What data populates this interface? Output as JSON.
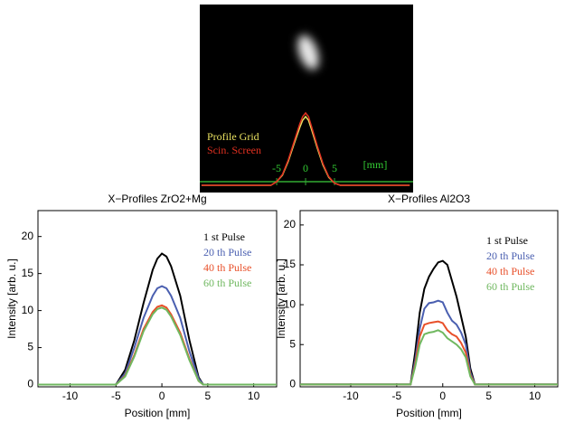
{
  "chart_data": [
    {
      "type": "line",
      "x_label": "[mm]",
      "xlim": [
        -18.3,
        18.6
      ],
      "ylim": [
        -0.1,
        2.5
      ],
      "xticks": [
        -5,
        0,
        5
      ],
      "x": [
        -18,
        -6,
        -5,
        -4,
        -3,
        -2,
        -1,
        -0.5,
        0,
        0.5,
        1,
        2,
        3,
        4,
        5,
        6,
        18
      ],
      "series": [
        {
          "name": "Profile Grid",
          "color": "#e8e060",
          "values": [
            0,
            0,
            0.05,
            0.14,
            0.33,
            0.57,
            0.8,
            0.9,
            0.95,
            0.9,
            0.78,
            0.52,
            0.28,
            0.11,
            0.03,
            0,
            0
          ]
        },
        {
          "name": "Scin. Screen",
          "color": "#e03020",
          "values": [
            0,
            0,
            0.05,
            0.15,
            0.35,
            0.6,
            0.85,
            0.95,
            1.0,
            0.95,
            0.82,
            0.55,
            0.3,
            0.12,
            0.03,
            0,
            0
          ]
        }
      ]
    },
    {
      "type": "line",
      "title": "X−Profiles ZrO2+Mg",
      "x_label": "Position [mm]",
      "y_label": "Intensity [arb. u.]",
      "xlim": [
        -13.5,
        12.5
      ],
      "ylim": [
        -0.3,
        23.5
      ],
      "xticks": [
        -10,
        -5,
        0,
        5,
        10
      ],
      "yticks": [
        0,
        5,
        10,
        15,
        20
      ],
      "x": [
        -13.5,
        -5,
        -4,
        -3,
        -2,
        -1,
        -0.5,
        0,
        0.5,
        1,
        2,
        3,
        4,
        4.5,
        12.5
      ],
      "series": [
        {
          "name": "1 st Pulse",
          "color": "#000000",
          "values": [
            0,
            0,
            2,
            6,
            11,
            15.5,
            17,
            17.7,
            17.3,
            16,
            12,
            6,
            1,
            0,
            0
          ]
        },
        {
          "name": "20 th Pulse",
          "color": "#4a5fb0",
          "values": [
            0,
            0,
            1.5,
            5,
            9,
            12,
            13,
            13.3,
            13,
            12,
            9,
            4.5,
            0.8,
            0,
            0
          ]
        },
        {
          "name": "40 th Pulse",
          "color": "#e8502a",
          "values": [
            0,
            0,
            1.2,
            4,
            7.5,
            9.8,
            10.5,
            10.7,
            10.4,
            9.5,
            7,
            3.5,
            0.5,
            0,
            0
          ]
        },
        {
          "name": "60 th Pulse",
          "color": "#70b860",
          "values": [
            0,
            0,
            1.1,
            3.8,
            7.2,
            9.5,
            10.2,
            10.4,
            10.1,
            9.2,
            6.7,
            3.3,
            0.5,
            0,
            0
          ]
        }
      ]
    },
    {
      "type": "line",
      "title": "X−Profiles Al2O3",
      "x_label": "Position [mm]",
      "y_label": "Intensity [arb. u.]",
      "xlim": [
        -15.5,
        12.5
      ],
      "ylim": [
        -0.3,
        21.8
      ],
      "xticks": [
        -10,
        -5,
        0,
        5,
        10
      ],
      "yticks": [
        0,
        5,
        10,
        15,
        20
      ],
      "x": [
        -15.5,
        -3.5,
        -3,
        -2.5,
        -2,
        -1.5,
        -1,
        -0.5,
        0,
        0.5,
        1,
        1.5,
        2,
        2.5,
        3,
        3.5,
        12.5
      ],
      "series": [
        {
          "name": "1 st Pulse",
          "color": "#000000",
          "values": [
            0,
            0,
            4,
            9,
            12,
            13.5,
            14.5,
            15.3,
            15.5,
            15,
            13,
            11,
            8.5,
            6,
            2,
            0,
            0
          ]
        },
        {
          "name": "20 th Pulse",
          "color": "#4a5fb0",
          "values": [
            0,
            0,
            3,
            7,
            9.5,
            10.2,
            10.3,
            10.5,
            10.3,
            9,
            8,
            7.5,
            6.5,
            5,
            1.5,
            0,
            0
          ]
        },
        {
          "name": "40 th Pulse",
          "color": "#e8502a",
          "values": [
            0,
            0,
            2.5,
            6,
            7.5,
            7.7,
            7.8,
            7.9,
            7.7,
            6.8,
            6.3,
            6,
            5.2,
            4,
            1.2,
            0,
            0
          ]
        },
        {
          "name": "60 th Pulse",
          "color": "#70b860",
          "values": [
            0,
            0,
            2.2,
            5,
            6.3,
            6.5,
            6.6,
            6.8,
            6.5,
            5.8,
            5.4,
            5,
            4.4,
            3.4,
            1,
            0,
            0
          ]
        }
      ]
    }
  ]
}
